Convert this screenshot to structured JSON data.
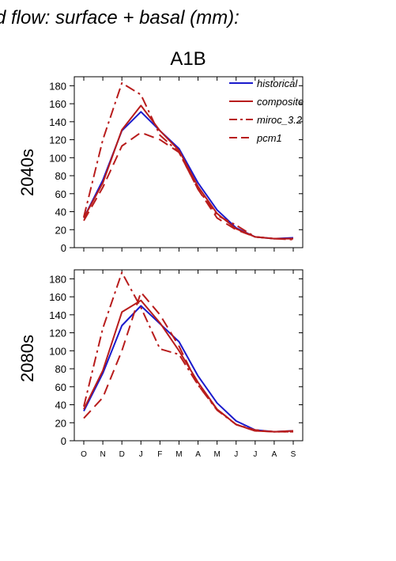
{
  "figure": {
    "title": "d flow: surface + basal (mm):",
    "scenario": "A1B"
  },
  "colors": {
    "historical": "#1a1acc",
    "scenario": "#b81c1c",
    "axis": "#000000"
  },
  "chart_data": [
    {
      "type": "line",
      "title": "A1B",
      "ylabel": "2040s",
      "xlabel": "",
      "categories": [
        "O",
        "N",
        "D",
        "J",
        "F",
        "M",
        "A",
        "M",
        "J",
        "J",
        "A",
        "S"
      ],
      "ylim": [
        0,
        190
      ],
      "yticks": [
        0,
        20,
        40,
        60,
        80,
        100,
        120,
        140,
        160,
        180
      ],
      "grid": false,
      "legend_position": "top-right",
      "series": [
        {
          "name": "historical",
          "style": "solid",
          "color": "#1a1acc",
          "values": [
            33,
            75,
            130,
            151,
            130,
            110,
            72,
            42,
            22,
            12,
            10,
            11
          ]
        },
        {
          "name": "composite",
          "style": "solid",
          "color": "#b81c1c",
          "values": [
            33,
            72,
            131,
            158,
            130,
            108,
            68,
            38,
            21,
            12,
            10,
            10
          ]
        },
        {
          "name": "miroc_3.2",
          "style": "dashdot",
          "color": "#b81c1c",
          "values": [
            34,
            120,
            183,
            170,
            125,
            106,
            65,
            36,
            25,
            12,
            10,
            9
          ]
        },
        {
          "name": "pcm1",
          "style": "dashed",
          "color": "#b81c1c",
          "values": [
            30,
            67,
            113,
            128,
            120,
            106,
            65,
            33,
            20,
            12,
            10,
            10
          ]
        }
      ]
    },
    {
      "type": "line",
      "title": "",
      "ylabel": "2080s",
      "xlabel": "",
      "categories": [
        "O",
        "N",
        "D",
        "J",
        "F",
        "M",
        "A",
        "M",
        "J",
        "J",
        "A",
        "S"
      ],
      "ylim": [
        0,
        190
      ],
      "yticks": [
        0,
        20,
        40,
        60,
        80,
        100,
        120,
        140,
        160,
        180
      ],
      "grid": false,
      "legend_position": "",
      "series": [
        {
          "name": "historical",
          "style": "solid",
          "color": "#1a1acc",
          "values": [
            33,
            75,
            128,
            150,
            130,
            110,
            72,
            42,
            22,
            12,
            10,
            11
          ]
        },
        {
          "name": "composite",
          "style": "solid",
          "color": "#b81c1c",
          "values": [
            35,
            78,
            143,
            156,
            131,
            100,
            65,
            35,
            18,
            11,
            10,
            11
          ]
        },
        {
          "name": "miroc_3.2",
          "style": "dashdot",
          "color": "#b81c1c",
          "values": [
            38,
            125,
            187,
            148,
            102,
            96,
            62,
            34,
            18,
            12,
            10,
            10
          ]
        },
        {
          "name": "pcm1",
          "style": "dashed",
          "color": "#b81c1c",
          "values": [
            25,
            48,
            100,
            165,
            140,
            105,
            62,
            35,
            18,
            11,
            10,
            10
          ]
        }
      ]
    }
  ]
}
